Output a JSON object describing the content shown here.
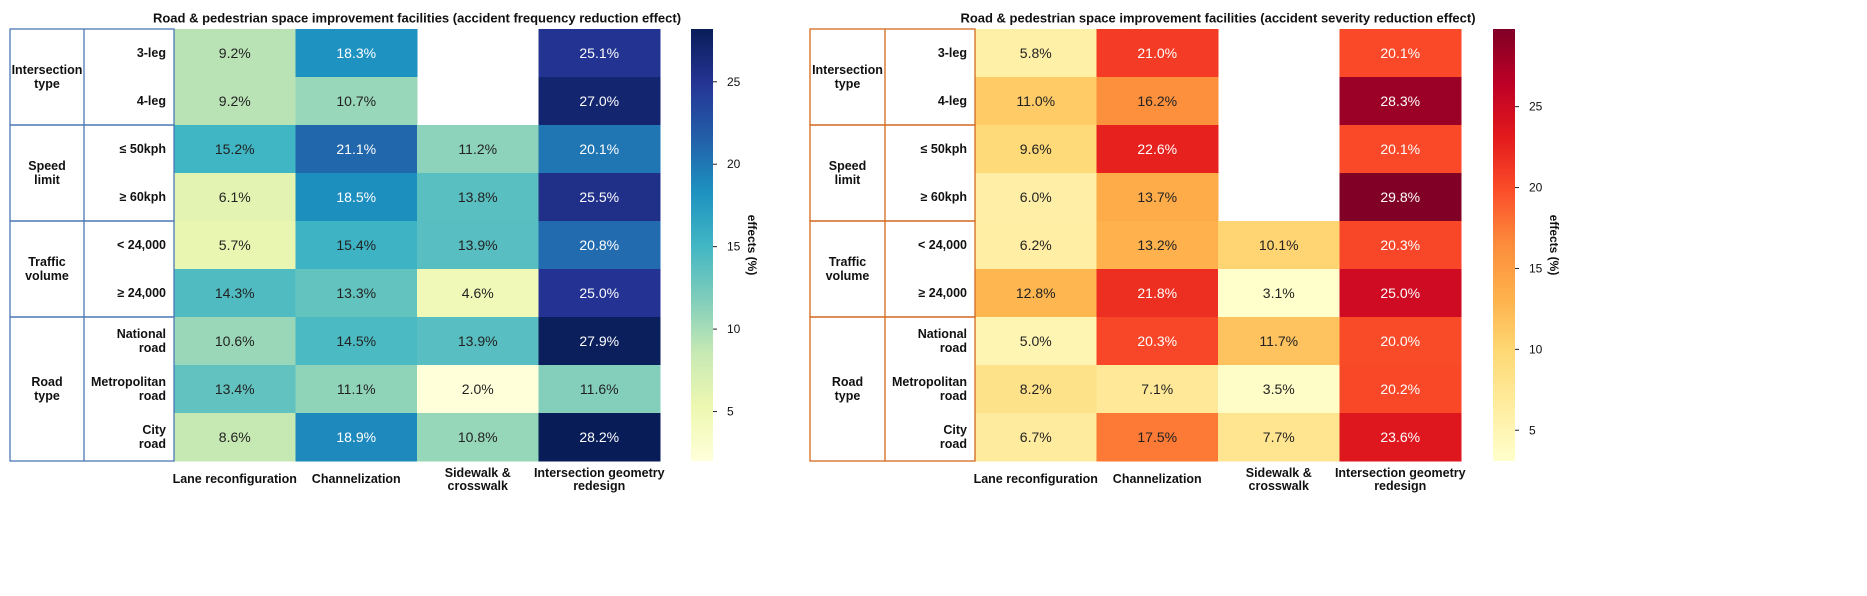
{
  "chart_data": [
    {
      "type": "heatmap",
      "title": "Road & pedestrian space improvement facilities (accident frequency reduction effect)",
      "columns": [
        "Lane reconfiguration",
        "Channelization",
        "Sidewalk & crosswalk",
        "Intersection geometry redesign"
      ],
      "groups": [
        {
          "name": "Intersection type",
          "rows": [
            "3-leg",
            "4-leg"
          ]
        },
        {
          "name": "Speed limit",
          "rows": [
            "≤ 50kph",
            "≥ 60kph"
          ]
        },
        {
          "name": "Traffic volume",
          "rows": [
            "< 24,000",
            "≥ 24,000"
          ]
        },
        {
          "name": "Road type",
          "rows": [
            "National road",
            "Metropolitan road",
            "City road"
          ]
        }
      ],
      "values": [
        [
          9.2,
          18.3,
          null,
          25.1
        ],
        [
          9.2,
          10.7,
          null,
          27.0
        ],
        [
          15.2,
          21.1,
          11.2,
          20.1
        ],
        [
          6.1,
          18.5,
          13.8,
          25.5
        ],
        [
          5.7,
          15.4,
          13.9,
          20.8
        ],
        [
          14.3,
          13.3,
          4.6,
          25.0
        ],
        [
          10.6,
          14.5,
          13.9,
          27.9
        ],
        [
          13.4,
          11.1,
          2.0,
          11.6
        ],
        [
          8.6,
          18.9,
          10.8,
          28.2
        ]
      ],
      "cell_labels": [
        [
          "9.2%",
          "18.3%",
          "",
          "25.1%"
        ],
        [
          "9.2%",
          "10.7%",
          "",
          "27.0%"
        ],
        [
          "15.2%",
          "21.1%",
          "11.2%",
          "20.1%"
        ],
        [
          "6.1%",
          "18.5%",
          "13.8%",
          "25.5%"
        ],
        [
          "5.7%",
          "15.4%",
          "13.9%",
          "20.8%"
        ],
        [
          "14.3%",
          "13.3%",
          "4.6%",
          "25.0%"
        ],
        [
          "10.6%",
          "14.5%",
          "13.9%",
          "27.9%"
        ],
        [
          "13.4%",
          "11.1%",
          "2.0%",
          "11.6%"
        ],
        [
          "8.6%",
          "18.9%",
          "10.8%",
          "28.2%"
        ]
      ],
      "colormap": "YlGnBu",
      "vmin": 2.0,
      "vmax": 28.2,
      "colorbar_label": "effects (%)",
      "colorbar_ticks": [
        5,
        10,
        15,
        20,
        25
      ],
      "frame_color": "#4a78b5"
    },
    {
      "type": "heatmap",
      "title": "Road & pedestrian space improvement facilities (accident severity reduction effect)",
      "columns": [
        "Lane reconfiguration",
        "Channelization",
        "Sidewalk & crosswalk",
        "Intersection geometry redesign"
      ],
      "groups": [
        {
          "name": "Intersection type",
          "rows": [
            "3-leg",
            "4-leg"
          ]
        },
        {
          "name": "Speed limit",
          "rows": [
            "≤ 50kph",
            "≥ 60kph"
          ]
        },
        {
          "name": "Traffic volume",
          "rows": [
            "< 24,000",
            "≥ 24,000"
          ]
        },
        {
          "name": "Road type",
          "rows": [
            "National road",
            "Metropolitan road",
            "City road"
          ]
        }
      ],
      "values": [
        [
          5.8,
          21.0,
          null,
          20.1
        ],
        [
          11.0,
          16.2,
          null,
          28.3
        ],
        [
          9.6,
          22.6,
          null,
          20.1
        ],
        [
          6.0,
          13.7,
          null,
          29.8
        ],
        [
          6.2,
          13.2,
          10.1,
          20.3
        ],
        [
          12.8,
          21.8,
          3.1,
          25.0
        ],
        [
          5.0,
          20.3,
          11.7,
          20.0
        ],
        [
          8.2,
          7.1,
          3.5,
          20.2
        ],
        [
          6.7,
          17.5,
          7.7,
          23.6
        ]
      ],
      "cell_labels": [
        [
          "5.8%",
          "21.0%",
          "",
          "20.1%"
        ],
        [
          "11.0%",
          "16.2%",
          "",
          "28.3%"
        ],
        [
          "9.6%",
          "22.6%",
          "",
          "20.1%"
        ],
        [
          "6.0%",
          "13.7%",
          "",
          "29.8%"
        ],
        [
          "6.2%",
          "13.2%",
          "10.1%",
          "20.3%"
        ],
        [
          "12.8%",
          "21.8%",
          "3.1%",
          "25.0%"
        ],
        [
          "5.0%",
          "20.3%",
          "11.7%",
          "20.0%"
        ],
        [
          "8.2%",
          "7.1%",
          "3.5%",
          "20.2%"
        ],
        [
          "6.7%",
          "17.5%",
          "7.7%",
          "23.6%"
        ]
      ],
      "colormap": "YlOrRd",
      "vmin": 3.1,
      "vmax": 29.8,
      "colorbar_label": "effects (%)",
      "colorbar_ticks": [
        5,
        10,
        15,
        20,
        25
      ],
      "frame_color": "#d2691e"
    }
  ]
}
